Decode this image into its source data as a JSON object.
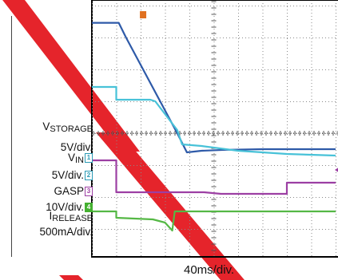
{
  "chart_data": {
    "type": "line",
    "title": "",
    "xlabel": "40ms/div.",
    "x_divisions": 10,
    "y_divisions": 8,
    "grid": true,
    "series": [
      {
        "label": "VSTORAGE",
        "scale": "5V/div.",
        "color": "#2e5aa8",
        "points": [
          [
            0,
            0.46
          ],
          [
            1.1,
            0.46
          ],
          [
            1.4,
            0.0
          ],
          [
            3.5,
            -3.0
          ],
          [
            3.9,
            -3.6
          ],
          [
            4.5,
            -3.55
          ],
          [
            5.5,
            -3.52
          ],
          [
            7.0,
            -3.5
          ],
          [
            10,
            -3.5
          ]
        ]
      },
      {
        "label": "VIN",
        "channel": "1",
        "scale": "5V/div.",
        "color": "#48c2d8",
        "points": [
          [
            0,
            -1.55
          ],
          [
            1.0,
            -1.55
          ],
          [
            1.0,
            -1.95
          ],
          [
            2.4,
            -1.95
          ],
          [
            2.6,
            -2.0
          ],
          [
            3.5,
            -2.9
          ],
          [
            3.7,
            -3.35
          ],
          [
            4.5,
            -3.4
          ],
          [
            6.0,
            -3.55
          ],
          [
            8.0,
            -3.65
          ],
          [
            10,
            -3.7
          ]
        ]
      },
      {
        "label": "GASP",
        "channel": "3",
        "scale": "10V/div.",
        "color": "#9c3fa3",
        "points": [
          [
            0,
            -3.85
          ],
          [
            1.0,
            -3.85
          ],
          [
            1.0,
            -4.85
          ],
          [
            4.6,
            -4.85
          ],
          [
            5.3,
            -4.9
          ],
          [
            8.0,
            -4.9
          ],
          [
            8.0,
            -4.55
          ],
          [
            10,
            -4.55
          ]
        ]
      },
      {
        "label": "IRELEASE",
        "channel": "4",
        "scale": "500mA/div.",
        "color": "#55b845",
        "points": [
          [
            0,
            -5.45
          ],
          [
            1.0,
            -5.45
          ],
          [
            1.0,
            -5.65
          ],
          [
            2.5,
            -5.7
          ],
          [
            3.0,
            -5.8
          ],
          [
            3.3,
            -6.05
          ],
          [
            3.4,
            -5.45
          ],
          [
            10,
            -5.45
          ]
        ]
      }
    ]
  },
  "labels": {
    "vstorage_main": "V",
    "vstorage_sub": "STORAGE",
    "vstorage_scale": "5V/div.",
    "vin_main": "V",
    "vin_sub": "IN",
    "vin_ch": "1",
    "vin_scale": "5V/div.",
    "gasp": "GASP",
    "gasp_ch": "3",
    "gasp_scale": "10V/div.",
    "irelease_main": "I",
    "irelease_sub": "RELEASE",
    "irelease_ch": "4",
    "irelease_scale": "500mA/div."
  },
  "colors": {
    "watermark": "#e5242b",
    "grid_dots": "#8a8a8a",
    "trigger_marker": "#e07020"
  }
}
